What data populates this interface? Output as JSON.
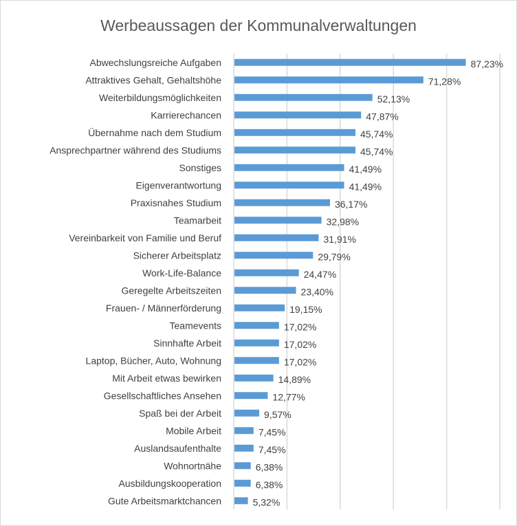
{
  "chart_data": {
    "type": "bar",
    "orientation": "horizontal",
    "title": "Werbeaussagen der Kommunalverwaltungen",
    "xlim": [
      0,
      100
    ],
    "x_grid_step": 20,
    "grid": true,
    "axis_tick_labels_shown": false,
    "bar_color": "#5B9BD5",
    "categories": [
      "Abwechslungsreiche Aufgaben",
      "Attraktives Gehalt, Gehaltshöhe",
      "Weiterbildungsmöglichkeiten",
      "Karrierechancen",
      "Übernahme nach dem Studium",
      "Ansprechpartner während des Studiums",
      "Sonstiges",
      "Eigenverantwortung",
      "Praxisnahes Studium ",
      "Teamarbeit",
      "Vereinbarkeit von Familie und Beruf",
      "Sicherer Arbeitsplatz",
      "Work-Life-Balance",
      "Geregelte Arbeitszeiten",
      "Frauen- / Männerförderung",
      "Teamevents",
      "Sinnhafte Arbeit",
      "Laptop, Bücher, Auto, Wohnung",
      "Mit Arbeit etwas bewirken",
      "Gesellschaftliches Ansehen",
      "Spaß bei der Arbeit",
      "Mobile Arbeit",
      "Auslandsaufenthalte",
      "Wohnortnähe",
      "Ausbildungskooperation",
      "Gute Arbeitsmarktchancen"
    ],
    "values": [
      87.23,
      71.28,
      52.13,
      47.87,
      45.74,
      45.74,
      41.49,
      41.49,
      36.17,
      32.98,
      31.91,
      29.79,
      24.47,
      23.4,
      19.15,
      17.02,
      17.02,
      17.02,
      14.89,
      12.77,
      9.57,
      7.45,
      7.45,
      6.38,
      6.38,
      5.32
    ],
    "data_labels": [
      "87,23%",
      "71,28%",
      "52,13%",
      "47,87%",
      "45,74%",
      "45,74%",
      "41,49%",
      "41,49%",
      "36,17%",
      "32,98%",
      "31,91%",
      "29,79%",
      "24,47%",
      "23,40%",
      "19,15%",
      "17,02%",
      "17,02%",
      "17,02%",
      "14,89%",
      "12,77%",
      "9,57%",
      "7,45%",
      "7,45%",
      "6,38%",
      "6,38%",
      "5,32%"
    ]
  }
}
